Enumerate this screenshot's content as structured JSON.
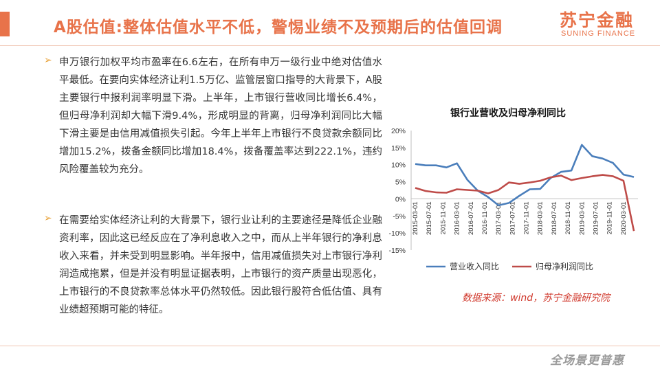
{
  "header": {
    "title": "A股估值:整体估值水平不低，警惕业绩不及预期后的估值回调",
    "logo_cn": "苏宁金融",
    "logo_en": "SUNING FINANCE"
  },
  "bullets": [
    {
      "marker": "➢",
      "text": "申万银行加权平均市盈率在6.6左右，在所有申万一级行业中绝对估值水平最低。在要向实体经济让利1.5万亿、监管层窗口指导的大背景下，A股主要银行中报利润率明显下滑。上半年，上市银行营收同比增长6.4%，但归母净利润却大幅下滑9.4%，形成明显的背离，归母净利润同比大幅下滑主要是由信用减值损失引起。今年上半年上市银行不良贷款余额同比增加15.2%，拨备金额同比增加18.4%，拨备覆盖率达到222.1%，违约风险覆盖较为充分。"
    },
    {
      "marker": "➢",
      "text": "在需要给实体经济让利的大背景下，银行业让利的主要途径是降低企业融资利率，因此这已经反应在了净利息收入之中，而从上半年银行的净利息收入来看，并未受到明显影响。半年报中，信用减值损失对上市银行净利润造成拖累，但是并没有明显证据表明，上市银行的资产质量出现恶化，上市银行的不良贷款率总体水平仍然较低。因此银行股符合低估值、具有业绩超预期可能的特征。"
    }
  ],
  "chart_data": {
    "type": "line",
    "title": "银行业营收及归母净利同比",
    "xlabel": "",
    "ylabel": "",
    "ylim": [
      -15,
      20
    ],
    "y_ticks": [
      "20%",
      "15%",
      "10%",
      "5%",
      "0%",
      "-5%",
      "-10%",
      "-15%"
    ],
    "y_tick_values": [
      20,
      15,
      10,
      5,
      0,
      -5,
      -10,
      -15
    ],
    "grid": false,
    "legend_position": "bottom",
    "x_tick_labels": [
      "2015-03-01",
      "2015-07-01",
      "2015-11-01",
      "2016-03-01",
      "2016-07-01",
      "2016-11-01",
      "2017-03-01",
      "2017-07-01",
      "2017-11-01",
      "2018-03-01",
      "2018-07-01",
      "2018-11-01",
      "2019-03-01",
      "2019-07-01",
      "2019-11-01",
      "2020-03-01"
    ],
    "x": [
      "2015-03",
      "2015-06",
      "2015-09",
      "2015-12",
      "2016-03",
      "2016-06",
      "2016-09",
      "2016-12",
      "2017-03",
      "2017-06",
      "2017-09",
      "2017-12",
      "2018-03",
      "2018-06",
      "2018-09",
      "2018-12",
      "2019-03",
      "2019-06",
      "2019-09",
      "2019-12",
      "2020-03",
      "2020-06"
    ],
    "series": [
      {
        "name": "营业收入同比",
        "color": "#4a7ebb",
        "values": [
          10.2,
          9.8,
          9.8,
          9.2,
          10.4,
          5.6,
          2.4,
          0.5,
          -1.9,
          -1.2,
          0.9,
          2.8,
          2.9,
          6.1,
          7.9,
          8.3,
          15.8,
          12.5,
          11.8,
          10.5,
          7.1,
          6.4
        ]
      },
      {
        "name": "归母净利润同比",
        "color": "#be4b48",
        "values": [
          3.2,
          2.3,
          1.9,
          1.8,
          2.8,
          2.6,
          2.4,
          1.6,
          2.6,
          4.8,
          4.4,
          4.8,
          5.3,
          6.3,
          6.8,
          5.5,
          6.1,
          6.6,
          7.0,
          6.6,
          5.3,
          -9.4
        ]
      }
    ]
  },
  "source_note": "数据来源：wind，苏宁金融研究院",
  "footer": {
    "slogan": "全场景更普惠"
  },
  "colors": {
    "accent": "#e8734a",
    "bullet_marker": "#e8a23a",
    "source_red": "#d0382c"
  }
}
